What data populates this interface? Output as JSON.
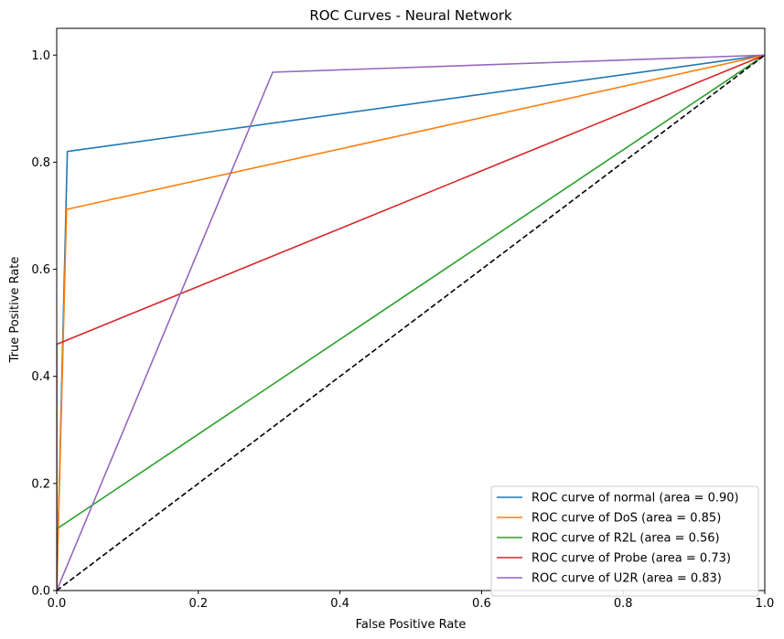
{
  "chart_data": {
    "type": "line",
    "title": "ROC Curves - Neural Network",
    "xlabel": "False Positive Rate",
    "ylabel": "True Positive Rate",
    "xlim": [
      0.0,
      1.0
    ],
    "ylim": [
      0.0,
      1.05
    ],
    "xticks": [
      "0.0",
      "0.2",
      "0.4",
      "0.6",
      "0.8",
      "1.0"
    ],
    "yticks": [
      "0.0",
      "0.2",
      "0.4",
      "0.6",
      "0.8",
      "1.0"
    ],
    "grid": false,
    "legend_position": "lower-right",
    "series": [
      {
        "name": "ROC curve of normal (area = 0.90)",
        "color": "#1f77b4",
        "dashed": false,
        "x": [
          0.0,
          0.015,
          1.0
        ],
        "y": [
          0.0,
          0.82,
          1.0
        ]
      },
      {
        "name": "ROC curve of DoS (area = 0.85)",
        "color": "#ff7f0e",
        "dashed": false,
        "x": [
          0.0,
          0.014,
          1.0
        ],
        "y": [
          0.0,
          0.712,
          1.0
        ]
      },
      {
        "name": "ROC curve of R2L (area = 0.56)",
        "color": "#2ca02c",
        "dashed": false,
        "x": [
          0.0,
          0.0,
          1.0
        ],
        "y": [
          0.0,
          0.115,
          1.0
        ]
      },
      {
        "name": "ROC curve of Probe (area = 0.73)",
        "color": "#d62728",
        "dashed": false,
        "x": [
          0.0,
          0.0,
          1.0
        ],
        "y": [
          0.0,
          0.46,
          1.0
        ]
      },
      {
        "name": "ROC curve of U2R (area = 0.83)",
        "color": "#9467bd",
        "dashed": false,
        "x": [
          0.0,
          0.305,
          1.0
        ],
        "y": [
          0.0,
          0.968,
          1.0
        ]
      },
      {
        "name": "",
        "color": "#000000",
        "dashed": true,
        "x": [
          0.0,
          1.0
        ],
        "y": [
          0.0,
          1.0
        ]
      }
    ]
  }
}
